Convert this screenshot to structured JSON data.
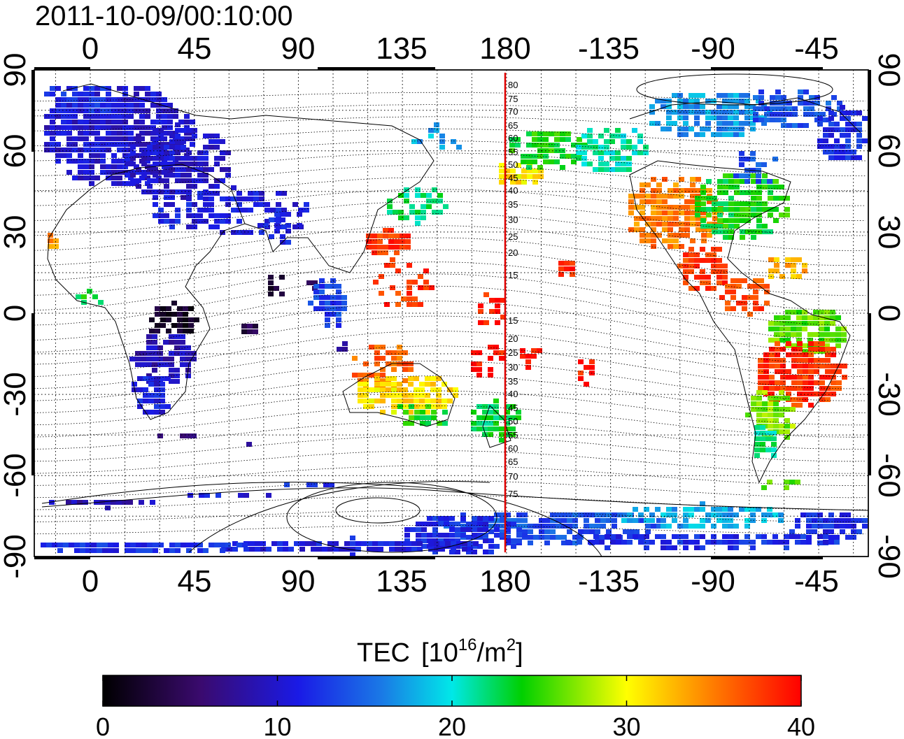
{
  "timestamp": "2011-10-09/00:10:00",
  "map": {
    "x_ticks": [
      "0",
      "45",
      "90",
      "135",
      "180",
      "-135",
      "-90",
      "-45"
    ],
    "y_ticks": [
      "90",
      "60",
      "30",
      "0",
      "-30",
      "-60",
      "-90"
    ],
    "meridian_labels": [
      "80",
      "75",
      "70",
      "65",
      "60",
      "55",
      "50",
      "45",
      "40",
      "35",
      "30",
      "25",
      "20",
      "15",
      "15",
      "20",
      "25",
      "30",
      "35",
      "40",
      "45",
      "50",
      "55",
      "60",
      "65",
      "70",
      "75"
    ],
    "meridian_line_color": "#e00000"
  },
  "colorbar": {
    "title": "TEC",
    "unit_base": "[10",
    "unit_exp": "16",
    "unit_mid": "/m",
    "unit_exp2": "2",
    "unit_end": "]",
    "ticks": [
      "0",
      "10",
      "20",
      "30",
      "40"
    ],
    "range": [
      0,
      40
    ],
    "colors": [
      "#000000",
      "#3a0a6e",
      "#1a1ae6",
      "#00e8e8",
      "#00d000",
      "#ffff00",
      "#ff8000",
      "#ff0000"
    ]
  },
  "chart_data": {
    "type": "heatmap",
    "title": "2011-10-09/00:10:00",
    "x_ticks": [
      "0",
      "45",
      "90",
      "135",
      "180",
      "-135",
      "-90",
      "-45"
    ],
    "y_ticks": [
      "90",
      "60",
      "30",
      "0",
      "-30",
      "-60",
      "-90"
    ],
    "colorbar_label": "TEC [10^16/m^2]",
    "value_range": [
      0,
      40
    ],
    "regions": [
      {
        "lon": 10,
        "lat": 65,
        "tec": 10
      },
      {
        "lon": 30,
        "lat": 50,
        "tec": 11
      },
      {
        "lon": 70,
        "lat": 45,
        "tec": 11
      },
      {
        "lon": 35,
        "lat": 0,
        "tec": 2
      },
      {
        "lon": 25,
        "lat": -25,
        "tec": 10
      },
      {
        "lon": 85,
        "lat": 10,
        "tec": 3
      },
      {
        "lon": 100,
        "lat": 0,
        "tec": 13
      },
      {
        "lon": 125,
        "lat": 30,
        "tec": 38
      },
      {
        "lon": 140,
        "lat": 40,
        "tec": 22
      },
      {
        "lon": 135,
        "lat": -25,
        "tec": 33
      },
      {
        "lon": 170,
        "lat": -40,
        "tec": 24
      },
      {
        "lon": 150,
        "lat": 5,
        "tec": 39
      },
      {
        "lon": -120,
        "lat": 40,
        "tec": 36
      },
      {
        "lon": -80,
        "lat": 40,
        "tec": 24
      },
      {
        "lon": -100,
        "lat": 70,
        "tec": 18
      },
      {
        "lon": -50,
        "lat": 70,
        "tec": 14
      },
      {
        "lon": -55,
        "lat": -25,
        "tec": 38
      },
      {
        "lon": -70,
        "lat": -55,
        "tec": 24
      },
      {
        "lon": 150,
        "lat": -80,
        "tec": 13
      },
      {
        "lon": -120,
        "lat": -80,
        "tec": 12
      },
      {
        "lon": 30,
        "lat": -88,
        "tec": 12
      }
    ]
  }
}
